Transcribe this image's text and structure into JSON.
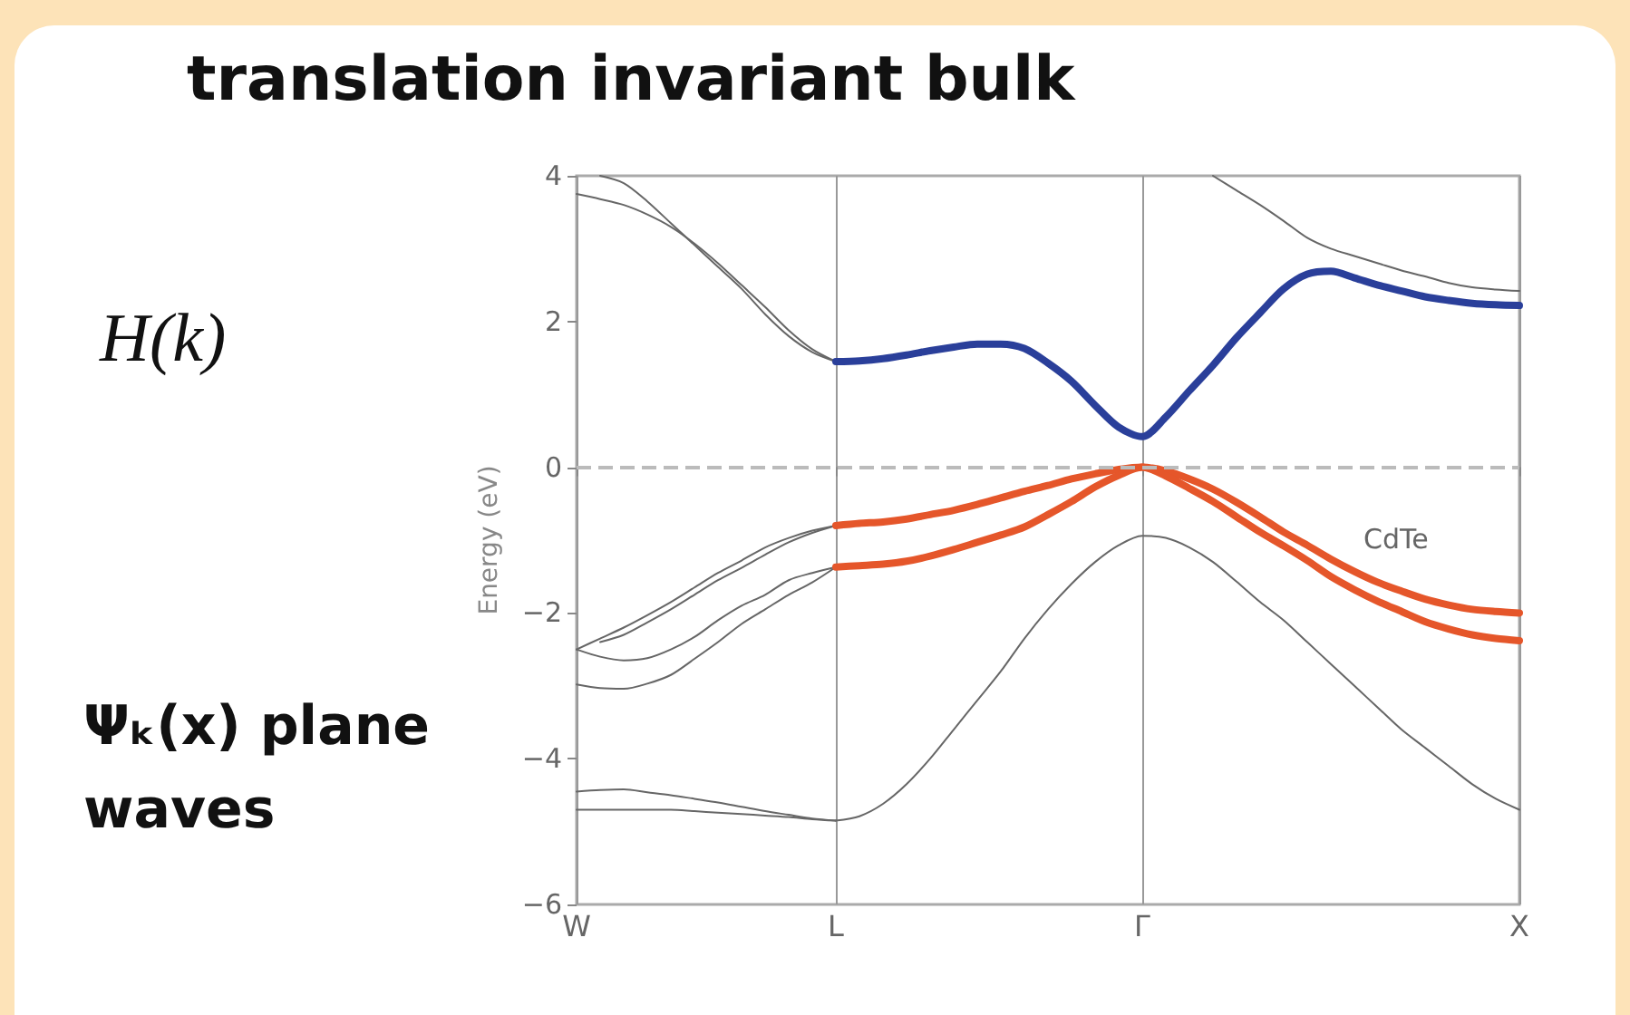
{
  "chart_data": {
    "type": "line",
    "title": "translation invariant bulk",
    "ylabel": "Energy (eV)",
    "annotations": [
      "H(k)",
      "Ψₖ(x) plane waves",
      "CdTe"
    ],
    "categories": [
      "W",
      null,
      null,
      null,
      null,
      null,
      null,
      null,
      null,
      null,
      null,
      "L",
      null,
      null,
      null,
      null,
      null,
      null,
      null,
      null,
      null,
      null,
      null,
      null,
      "Γ",
      null,
      null,
      null,
      null,
      null,
      null,
      null,
      null,
      null,
      null,
      null,
      null,
      null,
      null,
      null,
      "X"
    ],
    "ylim": [
      -6,
      4
    ],
    "yticks": [
      -6,
      -4,
      -2,
      0,
      2,
      4
    ],
    "grid": "x",
    "marker": "none",
    "line_style": "solid",
    "ref_lines": [
      {
        "axis": "y",
        "value": 0,
        "color": "#bbbbbb",
        "line_style": "dashed"
      }
    ],
    "series": [
      {
        "color": "#666666",
        "values": [
          3.75,
          3.68,
          3.6,
          3.47,
          3.3,
          3.07,
          2.8,
          2.5,
          2.2,
          1.88,
          1.62,
          1.45,
          null,
          null,
          null,
          null,
          null,
          null,
          null,
          null,
          null,
          null,
          null,
          null,
          null,
          null,
          null,
          null,
          null,
          null,
          null,
          null,
          null,
          null,
          null,
          null,
          null,
          null,
          null,
          null,
          null
        ]
      },
      {
        "color": "#666666",
        "values": [
          null,
          4.0,
          3.9,
          3.65,
          3.35,
          3.05,
          2.75,
          2.45,
          2.1,
          1.8,
          1.58,
          1.45,
          null,
          null,
          null,
          null,
          null,
          null,
          null,
          null,
          null,
          null,
          null,
          null,
          null,
          null,
          null,
          null,
          null,
          null,
          null,
          null,
          null,
          null,
          null,
          null,
          null,
          null,
          null,
          null,
          null
        ]
      },
      {
        "color": "#666666",
        "values": [
          null,
          null,
          null,
          null,
          null,
          null,
          null,
          null,
          null,
          null,
          null,
          null,
          null,
          null,
          null,
          null,
          null,
          null,
          null,
          null,
          null,
          null,
          null,
          null,
          null,
          null,
          null,
          4.0,
          3.8,
          3.6,
          3.38,
          3.15,
          3.0,
          2.9,
          2.8,
          2.7,
          2.62,
          2.53,
          2.47,
          2.44,
          2.42
        ]
      },
      {
        "color": "#2a3f9a",
        "values": [
          null,
          null,
          null,
          null,
          null,
          null,
          null,
          null,
          null,
          null,
          null,
          1.45,
          1.46,
          1.49,
          1.54,
          1.6,
          1.65,
          1.69,
          1.69,
          1.63,
          1.43,
          1.18,
          0.85,
          0.55,
          0.42,
          0.69,
          1.05,
          1.4,
          1.78,
          2.12,
          2.45,
          2.65,
          2.69,
          2.6,
          2.5,
          2.42,
          2.34,
          2.29,
          2.25,
          2.23,
          2.22
        ]
      },
      {
        "color": "#e5562a",
        "values": [
          null,
          null,
          null,
          null,
          null,
          null,
          null,
          null,
          null,
          null,
          null,
          -0.8,
          -0.77,
          -0.75,
          -0.71,
          -0.65,
          -0.59,
          -0.51,
          -0.42,
          -0.33,
          -0.25,
          -0.16,
          -0.09,
          -0.03,
          0,
          -0.05,
          -0.16,
          -0.3,
          -0.48,
          -0.68,
          -0.89,
          -1.07,
          -1.26,
          -1.43,
          -1.58,
          -1.7,
          -1.81,
          -1.89,
          -1.95,
          -1.98,
          -2.0
        ]
      },
      {
        "color": "#e5562a",
        "values": [
          null,
          null,
          null,
          null,
          null,
          null,
          null,
          null,
          null,
          null,
          null,
          -1.37,
          -1.35,
          -1.33,
          -1.29,
          -1.22,
          -1.13,
          -1.03,
          -0.93,
          -0.82,
          -0.65,
          -0.47,
          -0.27,
          -0.11,
          0,
          -0.12,
          -0.29,
          -0.47,
          -0.68,
          -0.89,
          -1.08,
          -1.28,
          -1.5,
          -1.68,
          -1.84,
          -1.98,
          -2.12,
          -2.22,
          -2.3,
          -2.35,
          -2.38
        ]
      },
      {
        "color": "#666666",
        "values": [
          null,
          null,
          null,
          null,
          null,
          null,
          null,
          null,
          null,
          null,
          null,
          -4.85,
          -4.79,
          -4.62,
          -4.35,
          -4.0,
          -3.6,
          -3.2,
          -2.8,
          -2.35,
          -1.95,
          -1.6,
          -1.3,
          -1.07,
          -0.94,
          -0.97,
          -1.1,
          -1.3,
          -1.57,
          -1.85,
          -2.1,
          -2.4,
          -2.7,
          -3.0,
          -3.3,
          -3.6,
          -3.85,
          -4.1,
          -4.35,
          -4.55,
          -4.7
        ]
      },
      {
        "color": "#666666",
        "values": [
          -4.45,
          -4.43,
          -4.42,
          -4.46,
          -4.5,
          -4.55,
          -4.6,
          -4.66,
          -4.72,
          -4.77,
          -4.82,
          -4.85,
          null,
          null,
          null,
          null,
          null,
          null,
          null,
          null,
          null,
          null,
          null,
          null,
          null,
          null,
          null,
          null,
          null,
          null,
          null,
          null,
          null,
          null,
          null,
          null,
          null,
          null,
          null,
          null,
          null
        ]
      },
      {
        "color": "#666666",
        "values": [
          -4.7,
          -4.7,
          -4.7,
          -4.7,
          -4.7,
          -4.72,
          -4.74,
          -4.76,
          -4.78,
          -4.8,
          -4.83,
          -4.85,
          null,
          null,
          null,
          null,
          null,
          null,
          null,
          null,
          null,
          null,
          null,
          null,
          null,
          null,
          null,
          null,
          null,
          null,
          null,
          null,
          null,
          null,
          null,
          null,
          null,
          null,
          null,
          null,
          null
        ]
      },
      {
        "color": "#666666",
        "values": [
          -2.5,
          -2.35,
          -2.2,
          -2.03,
          -1.85,
          -1.65,
          -1.45,
          -1.28,
          -1.1,
          -0.97,
          -0.87,
          -0.8,
          null,
          null,
          null,
          null,
          null,
          null,
          null,
          null,
          null,
          null,
          null,
          null,
          null,
          null,
          null,
          null,
          null,
          null,
          null,
          null,
          null,
          null,
          null,
          null,
          null,
          null,
          null,
          null,
          null
        ]
      },
      {
        "color": "#666666",
        "values": [
          null,
          -2.4,
          -2.3,
          -2.13,
          -1.95,
          -1.75,
          -1.55,
          -1.38,
          -1.2,
          -1.03,
          -0.9,
          -0.8,
          null,
          null,
          null,
          null,
          null,
          null,
          null,
          null,
          null,
          null,
          null,
          null,
          null,
          null,
          null,
          null,
          null,
          null,
          null,
          null,
          null,
          null,
          null,
          null,
          null,
          null,
          null,
          null,
          null
        ]
      },
      {
        "color": "#666666",
        "values": [
          -2.5,
          -2.6,
          -2.65,
          -2.62,
          -2.5,
          -2.33,
          -2.1,
          -1.9,
          -1.75,
          -1.55,
          -1.45,
          -1.37,
          null,
          null,
          null,
          null,
          null,
          null,
          null,
          null,
          null,
          null,
          null,
          null,
          null,
          null,
          null,
          null,
          null,
          null,
          null,
          null,
          null,
          null,
          null,
          null,
          null,
          null,
          null,
          null,
          null
        ]
      },
      {
        "color": "#666666",
        "values": [
          -2.98,
          -3.03,
          -3.04,
          -2.97,
          -2.85,
          -2.63,
          -2.4,
          -2.15,
          -1.95,
          -1.75,
          -1.58,
          -1.37,
          null,
          null,
          null,
          null,
          null,
          null,
          null,
          null,
          null,
          null,
          null,
          null,
          null,
          null,
          null,
          null,
          null,
          null,
          null,
          null,
          null,
          null,
          null,
          null,
          null,
          null,
          null,
          null,
          null
        ]
      }
    ]
  }
}
